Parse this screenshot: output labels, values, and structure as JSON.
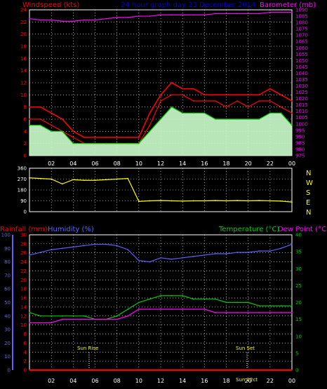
{
  "header": {
    "windspeed_label": "Windspeed (kts)",
    "title": "24 hour graph day  23 December 2014",
    "barometer_label": "Barometer (mb)"
  },
  "bottom_header": {
    "rainfall_label": "Rainfall (mm)",
    "humidity_label": "Humidity (%)",
    "temperature_label": "Temperature (°C)",
    "dewpoint_label": "Dew Point (°C)"
  },
  "x_tick_labels": [
    "02",
    "04",
    "06",
    "08",
    "10",
    "12",
    "14",
    "16",
    "18",
    "20",
    "22",
    "00"
  ],
  "direction_labels": [
    "N",
    "W",
    "S",
    "E",
    "N"
  ],
  "markers": {
    "sunrise": "Sun Rise",
    "sunset": "Sun Set",
    "sunset_overlap": "Sun 22ct"
  },
  "colors": {
    "windspeed": "#ff0000",
    "wind_gust": "#ff0000",
    "wind_avg": "#00cc00",
    "wind_fill": "#ccffcc",
    "barometer": "#ff00ff",
    "direction": "#ffff00",
    "humidity": "#6060ff",
    "rainfall": "#ff0000",
    "temperature": "#00cc00",
    "dewpoint": "#ff00ff",
    "grid": "#ffffff",
    "title": "#0000cc"
  },
  "chart_data": [
    {
      "type": "line",
      "title": "24 hour graph day  23 December 2014",
      "ylabel": "Windspeed (kts)",
      "y2label": "Barometer (mb)",
      "ylim": [
        0,
        24
      ],
      "y2lim": [
        975,
        1090
      ],
      "yticks": [
        0,
        2,
        4,
        6,
        8,
        10,
        12,
        14,
        16,
        18,
        20,
        22,
        24
      ],
      "y2ticks": [
        975,
        980,
        985,
        990,
        995,
        1000,
        1005,
        1010,
        1015,
        1020,
        1025,
        1030,
        1035,
        1040,
        1045,
        1050,
        1055,
        1060,
        1065,
        1070,
        1075,
        1080,
        1085,
        1090
      ],
      "x_hours": [
        0,
        1,
        2,
        3,
        4,
        5,
        6,
        7,
        8,
        9,
        10,
        11,
        12,
        13,
        14,
        15,
        16,
        17,
        18,
        19,
        20,
        21,
        22,
        23,
        24
      ],
      "series": [
        {
          "name": "Windspeed (kts)",
          "axis": "left",
          "values": [
            6,
            6,
            5,
            4,
            3,
            2,
            2,
            2,
            2,
            2,
            2,
            5,
            9,
            10,
            10,
            9,
            9,
            9,
            8,
            9,
            8,
            9,
            9,
            8,
            7
          ]
        },
        {
          "name": "Wind gust",
          "axis": "left",
          "values": [
            8,
            8,
            7,
            6,
            4,
            3,
            3,
            3,
            3,
            3,
            3,
            7,
            10,
            12,
            11,
            11,
            10,
            10,
            10,
            10,
            10,
            10,
            11,
            10,
            9
          ]
        },
        {
          "name": "Wind average",
          "axis": "left",
          "values": [
            5,
            5,
            4,
            4,
            2,
            2,
            2,
            2,
            2,
            2,
            2,
            4,
            6,
            8,
            7,
            7,
            7,
            6,
            6,
            6,
            6,
            6,
            7,
            7,
            5
          ]
        },
        {
          "name": "Barometer (mb)",
          "axis": "right",
          "values": [
            1083,
            1082,
            1082,
            1081,
            1081,
            1082,
            1082,
            1083,
            1084,
            1084,
            1085,
            1085,
            1086,
            1086,
            1086,
            1086,
            1086,
            1087,
            1087,
            1087,
            1087,
            1087,
            1088,
            1088,
            1088
          ]
        }
      ]
    },
    {
      "type": "line",
      "ylabel": "Wind direction",
      "ylim": [
        0,
        360
      ],
      "yticks": [
        0,
        90,
        180,
        270,
        360
      ],
      "x_hours": [
        0,
        1,
        2,
        3,
        4,
        5,
        6,
        7,
        8,
        9,
        10,
        11,
        12,
        13,
        14,
        15,
        16,
        17,
        18,
        19,
        20,
        21,
        22,
        23,
        24
      ],
      "series": [
        {
          "name": "Direction",
          "values": [
            280,
            275,
            270,
            230,
            265,
            260,
            260,
            265,
            270,
            275,
            85,
            90,
            92,
            90,
            88,
            90,
            90,
            92,
            90,
            92,
            90,
            92,
            90,
            88,
            80
          ]
        }
      ]
    },
    {
      "type": "line",
      "ylabel": "Rainfall (mm) / Humidity (%)",
      "y2label": "Temperature (°C) / Dew Point (°C)",
      "rain_ylim": [
        0,
        30
      ],
      "rain_yticks": [
        0,
        2,
        4,
        6,
        8,
        10,
        12,
        14,
        16,
        18,
        20,
        22,
        24,
        26,
        28,
        30
      ],
      "hum_ylim": [
        0,
        100
      ],
      "hum_yticks": [
        0,
        10,
        20,
        30,
        40,
        50,
        60,
        70,
        80,
        90,
        100
      ],
      "temp_ylim": [
        0,
        40
      ],
      "temp_yticks": [
        0,
        5,
        10,
        15,
        20,
        25,
        30,
        35,
        40
      ],
      "x_hours": [
        0,
        1,
        2,
        3,
        4,
        5,
        6,
        7,
        8,
        9,
        10,
        11,
        12,
        13,
        14,
        15,
        16,
        17,
        18,
        19,
        20,
        21,
        22,
        23,
        24
      ],
      "series": [
        {
          "name": "Rainfall (mm)",
          "axis": "rain",
          "values": [
            0,
            0,
            0,
            0,
            0,
            0,
            0,
            0,
            0,
            0,
            0,
            0,
            0,
            0,
            0,
            0,
            0,
            0,
            0,
            0,
            0,
            0,
            0,
            0,
            0
          ]
        },
        {
          "name": "Humidity (%)",
          "axis": "humidity",
          "values": [
            85,
            87,
            89,
            90,
            91,
            92,
            93,
            93,
            92,
            89,
            81,
            80,
            83,
            82,
            83,
            84,
            85,
            86,
            86,
            87,
            87,
            88,
            88,
            90,
            93
          ]
        },
        {
          "name": "Temperature (°C)",
          "axis": "temp",
          "values": [
            17,
            16,
            16,
            16,
            16,
            16,
            15,
            15,
            16,
            18,
            20,
            21,
            22,
            22,
            22,
            21,
            21,
            21,
            20,
            20,
            20,
            19,
            19,
            19,
            19
          ]
        },
        {
          "name": "Dew Point (°C)",
          "axis": "temp",
          "values": [
            14,
            14,
            14,
            15,
            15,
            15,
            15,
            15,
            15,
            16,
            18,
            18,
            18,
            18,
            18,
            18,
            18,
            17,
            17,
            17,
            17,
            17,
            17,
            17,
            17
          ]
        }
      ]
    }
  ]
}
